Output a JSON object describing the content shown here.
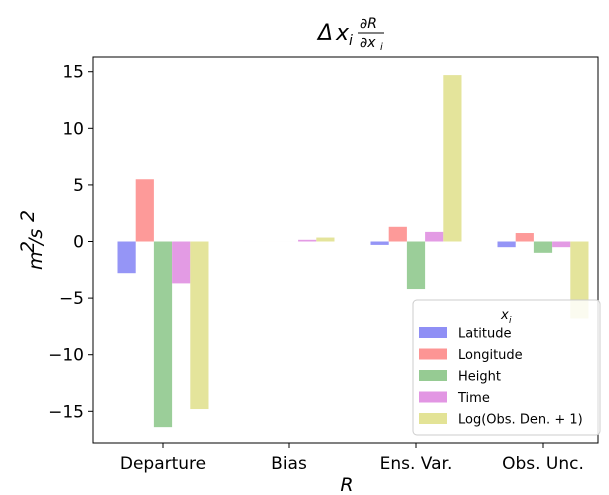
{
  "chart_data": {
    "type": "bar",
    "title": {
      "delta": "Δ",
      "x": "x",
      "i": "i",
      "numerator": "∂R",
      "denominator": "∂x",
      "denominator_sub": "i"
    },
    "xlabel": "R",
    "ylabel": {
      "base": "m",
      "exp": "2",
      "sep": "/s",
      "exp2": "2"
    },
    "categories": [
      "Departure",
      "Bias",
      "Ens. Var.",
      "Obs. Unc."
    ],
    "ylim": [
      -17.8,
      16.3
    ],
    "yticks": [
      15,
      10,
      5,
      0,
      -5,
      -10,
      -15
    ],
    "ytick_labels": [
      "15",
      "10",
      "5",
      "0",
      "−5",
      "−10",
      "−15"
    ],
    "legend": {
      "title": "x",
      "title_sub": "i",
      "placement": "lower-right"
    },
    "series": [
      {
        "name": "Latitude",
        "color": "#8f8ff5",
        "values": [
          -2.8,
          0.0,
          -0.3,
          -0.5
        ]
      },
      {
        "name": "Longitude",
        "color": "#fd9594",
        "values": [
          5.5,
          0.0,
          1.3,
          0.75
        ]
      },
      {
        "name": "Height",
        "color": "#96cb93",
        "values": [
          -16.4,
          0.0,
          -4.2,
          -1.0
        ]
      },
      {
        "name": "Time",
        "color": "#e296e3",
        "values": [
          -3.7,
          0.15,
          0.85,
          -0.5
        ]
      },
      {
        "name": "Log(Obs. Den. + 1)",
        "color": "#e3e396",
        "values": [
          -14.8,
          0.35,
          14.7,
          -6.8
        ]
      }
    ]
  }
}
